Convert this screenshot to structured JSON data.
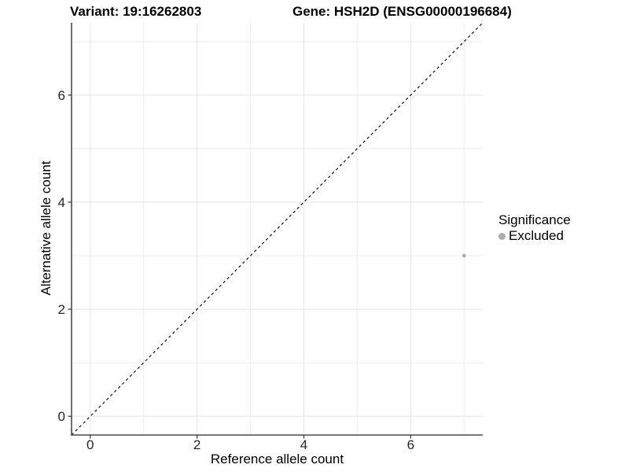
{
  "titles": {
    "variant": "Variant: 19:16262803",
    "gene": "Gene: HSH2D (ENSG00000196684)"
  },
  "legend": {
    "title": "Significance",
    "entries": [
      {
        "label": "Excluded",
        "color": "#adadad"
      }
    ]
  },
  "chart_data": {
    "type": "scatter",
    "title": "Variant: 19:16262803 — Gene: HSH2D (ENSG00000196684)",
    "xlabel": "Reference allele count",
    "ylabel": "Alternative allele count",
    "xlim": [
      -0.35,
      7.35
    ],
    "ylim": [
      -0.35,
      7.35
    ],
    "x_ticks": [
      0,
      2,
      4,
      6
    ],
    "y_ticks": [
      0,
      2,
      4,
      6
    ],
    "x_minor_ticks": [
      1,
      3,
      5,
      7
    ],
    "y_minor_ticks": [
      1,
      3,
      5,
      7
    ],
    "grid": true,
    "legend_position": "right",
    "reference_line": {
      "slope": 1,
      "intercept": 0,
      "style": "dashed",
      "color": "#111111"
    },
    "series": [
      {
        "name": "Excluded",
        "color": "#adadad",
        "points": [
          {
            "x": 7,
            "y": 3
          }
        ]
      }
    ],
    "colors": {
      "grid_major": "#e4e4e4",
      "grid_minor": "#ededed",
      "axis_line": "#4a4a4a",
      "tick_mark": "#333333",
      "tick_text": "#262626"
    }
  }
}
